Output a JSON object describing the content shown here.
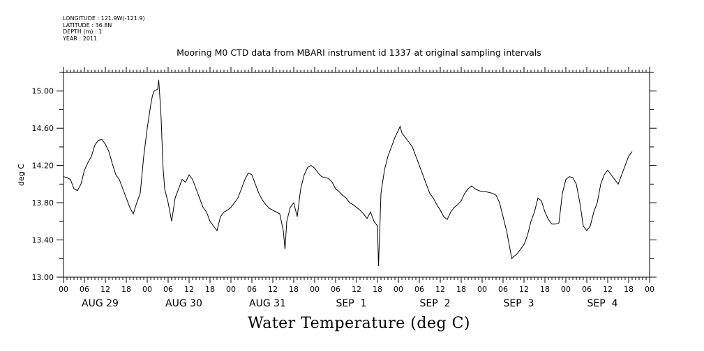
{
  "meta": {
    "longitude": "LONGITUDE : 121.9W(-121.9)",
    "latitude": "LATITUDE : 36.8N",
    "depth": "DEPTH (m) : 1",
    "year": "YEAR : 2011"
  },
  "title": "Mooring M0 CTD data from MBARI instrument id 1337 at original sampling intervals",
  "bottom_title": "Water Temperature (deg C)",
  "chart_data": {
    "type": "line",
    "title": "Mooring M0 CTD data from MBARI instrument id 1337 at original sampling intervals",
    "ylabel": "deg C",
    "xlabel": "Water Temperature (deg C)",
    "x_unit": "hours since AUG 29 00:00",
    "xlim": [
      0,
      168
    ],
    "ylim": [
      13.0,
      15.2
    ],
    "y_ticks": [
      13.0,
      13.4,
      13.8,
      14.2,
      14.6,
      15.0
    ],
    "y_tick_labels": [
      "13.00",
      "13.40",
      "13.80",
      "14.20",
      "14.60",
      "15.00"
    ],
    "x_tick_labels": [
      "00",
      "06",
      "12",
      "18",
      "00",
      "06",
      "12",
      "18",
      "00",
      "06",
      "12",
      "18",
      "00",
      "06",
      "12",
      "18",
      "00",
      "06",
      "12",
      "18",
      "00",
      "06",
      "12",
      "18",
      "00",
      "06",
      "12",
      "18",
      "00"
    ],
    "day_labels": [
      "AUG 29",
      "AUG 30",
      "AUG 31",
      "SEP  1",
      "SEP  2",
      "SEP  3",
      "SEP  4"
    ],
    "grid": false,
    "series": [
      {
        "color": "#000000",
        "points": [
          [
            0,
            14.08
          ],
          [
            1,
            14.07
          ],
          [
            2,
            14.05
          ],
          [
            3,
            13.95
          ],
          [
            4,
            13.93
          ],
          [
            5,
            14.0
          ],
          [
            6,
            14.15
          ],
          [
            7,
            14.23
          ],
          [
            8,
            14.3
          ],
          [
            9,
            14.42
          ],
          [
            10,
            14.47
          ],
          [
            11,
            14.48
          ],
          [
            12,
            14.43
          ],
          [
            13,
            14.35
          ],
          [
            14,
            14.22
          ],
          [
            15,
            14.1
          ],
          [
            16,
            14.05
          ],
          [
            17,
            13.95
          ],
          [
            18,
            13.85
          ],
          [
            19,
            13.75
          ],
          [
            20,
            13.68
          ],
          [
            21,
            13.8
          ],
          [
            22,
            13.9
          ],
          [
            23,
            14.3
          ],
          [
            24,
            14.6
          ],
          [
            25,
            14.85
          ],
          [
            25.5,
            14.95
          ],
          [
            26,
            15.0
          ],
          [
            27,
            15.02
          ],
          [
            27.3,
            15.12
          ],
          [
            27.6,
            14.95
          ],
          [
            28,
            14.7
          ],
          [
            28.5,
            14.2
          ],
          [
            29,
            13.95
          ],
          [
            30,
            13.8
          ],
          [
            31,
            13.6
          ],
          [
            32,
            13.85
          ],
          [
            33,
            13.95
          ],
          [
            34,
            14.05
          ],
          [
            35,
            14.02
          ],
          [
            36,
            14.1
          ],
          [
            37,
            14.05
          ],
          [
            38,
            13.95
          ],
          [
            39,
            13.85
          ],
          [
            40,
            13.75
          ],
          [
            41,
            13.7
          ],
          [
            42,
            13.6
          ],
          [
            43,
            13.55
          ],
          [
            44,
            13.5
          ],
          [
            45,
            13.65
          ],
          [
            46,
            13.7
          ],
          [
            47,
            13.72
          ],
          [
            48,
            13.75
          ],
          [
            49,
            13.8
          ],
          [
            50,
            13.85
          ],
          [
            51,
            13.95
          ],
          [
            52,
            14.05
          ],
          [
            53,
            14.12
          ],
          [
            54,
            14.1
          ],
          [
            55,
            14.0
          ],
          [
            56,
            13.9
          ],
          [
            57,
            13.83
          ],
          [
            58,
            13.78
          ],
          [
            59,
            13.74
          ],
          [
            60,
            13.72
          ],
          [
            61,
            13.7
          ],
          [
            62,
            13.68
          ],
          [
            63,
            13.5
          ],
          [
            63.5,
            13.3
          ],
          [
            64,
            13.6
          ],
          [
            65,
            13.75
          ],
          [
            66,
            13.8
          ],
          [
            67,
            13.65
          ],
          [
            68,
            13.95
          ],
          [
            69,
            14.1
          ],
          [
            70,
            14.18
          ],
          [
            71,
            14.2
          ],
          [
            72,
            14.17
          ],
          [
            73,
            14.12
          ],
          [
            74,
            14.08
          ],
          [
            75,
            14.07
          ],
          [
            76,
            14.06
          ],
          [
            77,
            14.02
          ],
          [
            78,
            13.95
          ],
          [
            79,
            13.92
          ],
          [
            80,
            13.88
          ],
          [
            81,
            13.85
          ],
          [
            82,
            13.8
          ],
          [
            83,
            13.78
          ],
          [
            84,
            13.75
          ],
          [
            85,
            13.72
          ],
          [
            86,
            13.68
          ],
          [
            87,
            13.63
          ],
          [
            88,
            13.7
          ],
          [
            89,
            13.6
          ],
          [
            90,
            13.55
          ],
          [
            90.3,
            13.12
          ],
          [
            90.7,
            13.55
          ],
          [
            91,
            13.9
          ],
          [
            92,
            14.15
          ],
          [
            93,
            14.3
          ],
          [
            94,
            14.4
          ],
          [
            95,
            14.5
          ],
          [
            96,
            14.58
          ],
          [
            96.5,
            14.62
          ],
          [
            97,
            14.55
          ],
          [
            98,
            14.5
          ],
          [
            99,
            14.45
          ],
          [
            100,
            14.4
          ],
          [
            101,
            14.3
          ],
          [
            102,
            14.2
          ],
          [
            103,
            14.1
          ],
          [
            104,
            14.0
          ],
          [
            105,
            13.9
          ],
          [
            106,
            13.85
          ],
          [
            107,
            13.78
          ],
          [
            108,
            13.72
          ],
          [
            109,
            13.65
          ],
          [
            110,
            13.62
          ],
          [
            111,
            13.7
          ],
          [
            112,
            13.75
          ],
          [
            113,
            13.78
          ],
          [
            114,
            13.82
          ],
          [
            115,
            13.9
          ],
          [
            116,
            13.95
          ],
          [
            117,
            13.98
          ],
          [
            118,
            13.95
          ],
          [
            119,
            13.93
          ],
          [
            120,
            13.92
          ],
          [
            121,
            13.92
          ],
          [
            122,
            13.91
          ],
          [
            123,
            13.9
          ],
          [
            124,
            13.88
          ],
          [
            125,
            13.8
          ],
          [
            126,
            13.65
          ],
          [
            127,
            13.5
          ],
          [
            128,
            13.3
          ],
          [
            128.5,
            13.2
          ],
          [
            129,
            13.22
          ],
          [
            130,
            13.25
          ],
          [
            131,
            13.3
          ],
          [
            132,
            13.35
          ],
          [
            133,
            13.45
          ],
          [
            134,
            13.6
          ],
          [
            135,
            13.7
          ],
          [
            136,
            13.85
          ],
          [
            137,
            13.82
          ],
          [
            138,
            13.7
          ],
          [
            139,
            13.62
          ],
          [
            140,
            13.57
          ],
          [
            141,
            13.57
          ],
          [
            142,
            13.58
          ],
          [
            143,
            13.9
          ],
          [
            144,
            14.05
          ],
          [
            145,
            14.08
          ],
          [
            146,
            14.07
          ],
          [
            147,
            14.0
          ],
          [
            148,
            13.8
          ],
          [
            149,
            13.55
          ],
          [
            150,
            13.5
          ],
          [
            151,
            13.55
          ],
          [
            152,
            13.7
          ],
          [
            153,
            13.8
          ],
          [
            154,
            14.0
          ],
          [
            155,
            14.1
          ],
          [
            156,
            14.15
          ],
          [
            157,
            14.1
          ],
          [
            158,
            14.05
          ],
          [
            159,
            14.0
          ],
          [
            160,
            14.1
          ],
          [
            161,
            14.2
          ],
          [
            162,
            14.3
          ],
          [
            163,
            14.35
          ]
        ]
      }
    ]
  }
}
